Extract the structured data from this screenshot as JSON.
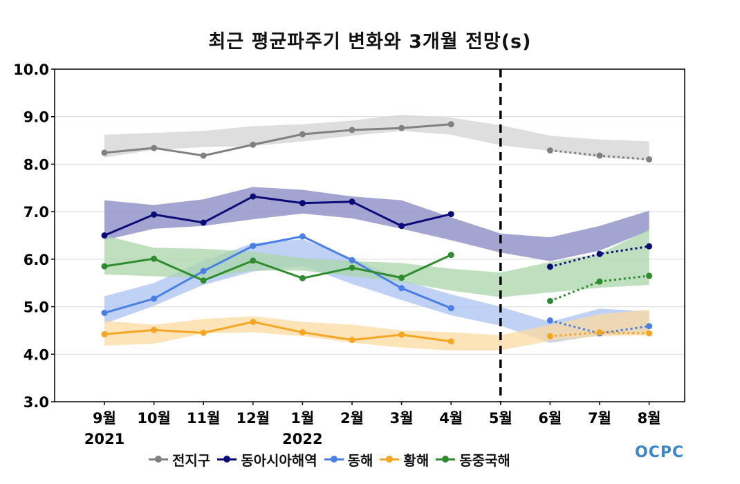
{
  "logo_text": "OCPC",
  "chart_data": {
    "type": "line",
    "title": "최근 평균파주기 변화와 3개월 전망(s)",
    "xlabel": "",
    "ylabel": "",
    "ylim": [
      3.0,
      10.0
    ],
    "y_ticks": [
      "3.0",
      "4.0",
      "5.0",
      "6.0",
      "7.0",
      "8.0",
      "9.0",
      "10.0"
    ],
    "categories": [
      "9월",
      "10월",
      "11월",
      "12월",
      "1월",
      "2월",
      "3월",
      "4월",
      "5월",
      "6월",
      "7월",
      "8월"
    ],
    "year_labels": [
      {
        "category_index": 0,
        "text": "2021"
      },
      {
        "category_index": 4,
        "text": "2022"
      }
    ],
    "divider_at_category": "5월",
    "grid": "horizontal",
    "legend_position": "bottom",
    "series": [
      {
        "name": "전지구",
        "color": "#808080",
        "band_color": "#d3d3d3",
        "observed": [
          8.24,
          8.34,
          8.18,
          8.41,
          8.63,
          8.72,
          8.76,
          8.84,
          null,
          null,
          null,
          null
        ],
        "forecast": [
          null,
          null,
          null,
          null,
          null,
          null,
          null,
          null,
          null,
          8.29,
          8.18,
          8.1
        ],
        "band_upper": [
          8.62,
          8.66,
          8.7,
          8.8,
          8.84,
          8.92,
          9.04,
          8.98,
          8.82,
          8.6,
          8.52,
          8.48
        ],
        "band_lower": [
          8.14,
          8.3,
          8.36,
          8.38,
          8.48,
          8.6,
          8.7,
          8.62,
          8.4,
          8.28,
          8.14,
          8.08
        ]
      },
      {
        "name": "동아시아해역",
        "color": "#0b0b78",
        "band_color": "#8585c2",
        "observed": [
          6.5,
          6.94,
          6.77,
          7.32,
          7.18,
          7.21,
          6.7,
          6.95,
          null,
          null,
          null,
          null
        ],
        "forecast": [
          null,
          null,
          null,
          null,
          null,
          null,
          null,
          null,
          null,
          5.84,
          6.11,
          6.27
        ],
        "band_upper": [
          7.24,
          7.14,
          7.26,
          7.52,
          7.46,
          7.32,
          7.24,
          6.88,
          6.54,
          6.46,
          6.7,
          7.02
        ],
        "band_lower": [
          6.4,
          6.64,
          6.7,
          6.84,
          6.96,
          6.86,
          6.64,
          6.4,
          6.14,
          5.96,
          6.18,
          6.6
        ]
      },
      {
        "name": "동해",
        "color": "#4a7fe8",
        "band_color": "#aac2f0",
        "observed": [
          4.87,
          5.17,
          5.75,
          6.28,
          6.48,
          5.98,
          5.39,
          4.97,
          null,
          null,
          null,
          null
        ],
        "forecast": [
          null,
          null,
          null,
          null,
          null,
          null,
          null,
          null,
          null,
          4.71,
          4.44,
          4.59
        ],
        "band_upper": [
          5.22,
          5.5,
          5.96,
          6.34,
          6.42,
          6.02,
          5.56,
          5.26,
          5.0,
          4.68,
          4.96,
          4.9
        ],
        "band_lower": [
          4.64,
          5.02,
          5.46,
          5.74,
          5.86,
          5.48,
          5.14,
          4.82,
          4.6,
          4.24,
          4.4,
          4.42
        ]
      },
      {
        "name": "황해",
        "color": "#f5a623",
        "band_color": "#fbd9a0",
        "observed": [
          4.42,
          4.51,
          4.45,
          4.68,
          4.46,
          4.3,
          4.41,
          4.27,
          null,
          null,
          null,
          null
        ],
        "forecast": [
          null,
          null,
          null,
          null,
          null,
          null,
          null,
          null,
          null,
          4.38,
          4.46,
          4.44
        ],
        "band_upper": [
          4.7,
          4.62,
          4.74,
          4.8,
          4.68,
          4.62,
          4.5,
          4.46,
          4.4,
          4.62,
          4.84,
          4.94
        ],
        "band_lower": [
          4.18,
          4.22,
          4.44,
          4.46,
          4.38,
          4.24,
          4.14,
          4.08,
          4.08,
          4.28,
          4.38,
          4.4
        ]
      },
      {
        "name": "동중국해",
        "color": "#2e8b2e",
        "band_color": "#a9d6a9",
        "observed": [
          5.85,
          6.01,
          5.55,
          5.97,
          5.6,
          5.82,
          5.61,
          6.09,
          null,
          null,
          null,
          null
        ],
        "forecast": [
          null,
          null,
          null,
          null,
          null,
          null,
          null,
          null,
          null,
          5.12,
          5.53,
          5.65
        ],
        "band_upper": [
          6.5,
          6.24,
          6.22,
          6.16,
          6.02,
          5.96,
          5.92,
          5.8,
          5.72,
          5.94,
          6.12,
          6.62
        ],
        "band_lower": [
          5.68,
          5.64,
          5.6,
          5.76,
          5.76,
          5.64,
          5.52,
          5.34,
          5.2,
          5.3,
          5.4,
          5.46
        ]
      }
    ]
  }
}
